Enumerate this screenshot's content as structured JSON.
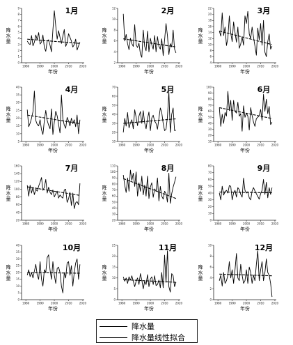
{
  "figure": {
    "y_label": "降水量",
    "x_label": "年份"
  },
  "legend": {
    "precip_label": "降水量",
    "trend_label": "降水量线性拟合"
  },
  "colors": {
    "series": "#000000",
    "trend": "#000000",
    "axes": "#222222"
  },
  "chart_data": [
    {
      "type": "line",
      "month_label": "1月",
      "x_start": 1981,
      "x_end": 2018,
      "xticks": [
        1980,
        1990,
        2000,
        2010,
        2020
      ],
      "ylim": [
        0,
        9
      ],
      "yticks": [
        0,
        1,
        2,
        3,
        4,
        5,
        6,
        7,
        8,
        9
      ],
      "values": [
        3.6,
        3.2,
        3.0,
        4.5,
        2.8,
        3.4,
        4.6,
        3.8,
        5.0,
        3.1,
        3.4,
        4.6,
        2.5,
        1.9,
        3.6,
        3.8,
        2.9,
        1.8,
        5.4,
        8.6,
        6.1,
        3.9,
        5.3,
        4.2,
        3.2,
        4.4,
        5.5,
        2.7,
        3.3,
        4.8,
        4.2,
        3.6,
        2.6,
        3.0,
        3.9,
        2.1,
        2.8,
        3.4
      ],
      "trend": [
        3.9,
        3.2
      ]
    },
    {
      "type": "line",
      "month_label": "2月",
      "x_start": 1981,
      "x_end": 2018,
      "xticks": [
        1980,
        1990,
        2000,
        2010,
        2020
      ],
      "ylim": [
        2,
        12
      ],
      "yticks": [
        2,
        4,
        6,
        8,
        10,
        12
      ],
      "values": [
        11.0,
        6.0,
        7.2,
        5.5,
        4.4,
        6.5,
        5.5,
        5.0,
        9.0,
        5.3,
        4.8,
        5.6,
        3.6,
        3.0,
        8.0,
        5.0,
        4.2,
        7.8,
        4.0,
        6.5,
        5.3,
        4.5,
        7.0,
        4.0,
        6.8,
        5.0,
        4.5,
        6.4,
        3.3,
        6.2,
        9.2,
        7.0,
        3.5,
        5.5,
        4.9,
        8.0,
        4.5,
        3.8
      ],
      "trend": [
        6.4,
        4.9
      ]
    },
    {
      "type": "line",
      "month_label": "3月",
      "x_start": 1981,
      "x_end": 2018,
      "xticks": [
        1980,
        1990,
        2000,
        2010,
        2020
      ],
      "ylim": [
        4,
        22
      ],
      "yticks": [
        4,
        6,
        8,
        10,
        12,
        14,
        16,
        18,
        20,
        22
      ],
      "values": [
        14.5,
        12.8,
        20.5,
        13.0,
        15.8,
        9.7,
        12.2,
        19.5,
        13.8,
        11.0,
        17.5,
        14.0,
        10.8,
        15.8,
        8.8,
        10.2,
        12.5,
        9.8,
        19.5,
        17.0,
        21.0,
        13.5,
        12.0,
        15.8,
        12.5,
        9.5,
        6.5,
        15.5,
        11.5,
        17.0,
        9.8,
        18.0,
        7.5,
        6.0,
        11.0,
        13.5,
        8.5,
        9.5
      ],
      "trend": [
        14.5,
        10.0
      ]
    },
    {
      "type": "line",
      "month_label": "4月",
      "x_start": 1981,
      "x_end": 2018,
      "xticks": [
        1980,
        1990,
        2000,
        2010,
        2020
      ],
      "ylim": [
        5,
        40
      ],
      "yticks": [
        5,
        10,
        15,
        20,
        25,
        30,
        35,
        40
      ],
      "values": [
        25.5,
        14.5,
        16.8,
        20.0,
        24.2,
        37.5,
        18.5,
        16.0,
        15.0,
        19.0,
        12.5,
        9.5,
        18.5,
        25.0,
        18.5,
        15.5,
        13.2,
        26.0,
        9.5,
        17.5,
        24.5,
        21.5,
        16.0,
        10.5,
        35.0,
        19.5,
        15.5,
        13.5,
        20.5,
        18.2,
        15.0,
        20.0,
        16.5,
        19.0,
        14.5,
        22.0,
        10.0,
        19.0
      ],
      "trend": [
        22.0,
        16.5
      ]
    },
    {
      "type": "line",
      "month_label": "5月",
      "x_start": 1981,
      "x_end": 2018,
      "xticks": [
        1980,
        1990,
        2000,
        2010,
        2020
      ],
      "ylim": [
        10,
        70
      ],
      "yticks": [
        10,
        20,
        30,
        40,
        50,
        60,
        70
      ],
      "values": [
        20.0,
        35.5,
        27.0,
        42.0,
        25.0,
        30.5,
        34.0,
        24.0,
        45.0,
        36.5,
        27.5,
        38.0,
        43.0,
        30.0,
        44.0,
        30.5,
        24.0,
        35.0,
        42.5,
        22.0,
        36.0,
        39.0,
        32.5,
        30.0,
        23.5,
        35.5,
        47.0,
        42.0,
        30.0,
        22.0,
        23.5,
        37.0,
        65.0,
        20.0,
        40.0,
        47.0,
        22.0,
        22.5
      ],
      "trend": [
        30.0,
        35.0
      ]
    },
    {
      "type": "line",
      "month_label": "6月",
      "x_start": 1981,
      "x_end": 2018,
      "xticks": [
        1980,
        1990,
        2000,
        2010,
        2020
      ],
      "ylim": [
        10,
        100
      ],
      "yticks": [
        10,
        20,
        30,
        40,
        50,
        60,
        70,
        80,
        90,
        100
      ],
      "values": [
        66.0,
        35.0,
        55.0,
        40.0,
        58.0,
        52.0,
        93.0,
        61.0,
        78.0,
        45.0,
        78.0,
        60.0,
        57.0,
        75.0,
        52.0,
        56.0,
        27.0,
        69.0,
        50.0,
        57.0,
        52.0,
        29.0,
        66.0,
        53.0,
        42.0,
        35.0,
        48.0,
        50.0,
        53.0,
        63.0,
        45.0,
        88.0,
        60.0,
        80.0,
        56.0,
        68.0,
        38.0,
        42.0
      ],
      "trend": [
        66.0,
        48.0
      ]
    },
    {
      "type": "line",
      "month_label": "7月",
      "x_start": 1981,
      "x_end": 2018,
      "xticks": [
        1980,
        1990,
        2000,
        2010,
        2020
      ],
      "ylim": [
        20,
        160
      ],
      "yticks": [
        20,
        40,
        60,
        80,
        100,
        120,
        140,
        160
      ],
      "values": [
        110,
        82,
        110,
        90,
        105,
        86,
        100,
        95,
        108,
        118,
        130,
        97,
        105,
        125,
        90,
        105,
        92,
        86,
        98,
        80,
        88,
        95,
        77,
        85,
        80,
        77,
        98,
        100,
        66,
        75,
        92,
        58,
        90,
        50,
        65,
        68,
        60,
        115
      ],
      "trend": [
        106,
        84
      ]
    },
    {
      "type": "line",
      "month_label": "8月",
      "x_start": 1981,
      "x_end": 2018,
      "xticks": [
        1980,
        1990,
        2000,
        2010,
        2020
      ],
      "ylim": [
        20,
        110
      ],
      "yticks": [
        20,
        30,
        40,
        50,
        60,
        70,
        80,
        90,
        100,
        110
      ],
      "values": [
        95,
        78,
        66,
        90,
        68,
        103,
        86,
        98,
        76,
        100,
        60,
        82,
        68,
        93,
        62,
        78,
        60,
        93,
        56,
        75,
        82,
        58,
        72,
        68,
        90,
        52,
        76,
        60,
        55,
        68,
        64,
        50,
        98,
        48,
        64,
        75,
        83,
        92
      ],
      "trend": [
        89,
        56
      ]
    },
    {
      "type": "line",
      "month_label": "9月",
      "x_start": 1981,
      "x_end": 2018,
      "xticks": [
        1980,
        1990,
        2000,
        2010,
        2020
      ],
      "ylim": [
        0,
        80
      ],
      "yticks": [
        0,
        10,
        20,
        30,
        40,
        50,
        60,
        70,
        80
      ],
      "values": [
        40,
        30,
        50,
        37,
        42,
        44,
        40,
        51,
        50,
        30,
        40,
        44,
        34,
        48,
        45,
        38,
        34,
        62,
        44,
        40,
        42,
        33,
        30,
        43,
        48,
        43,
        39,
        35,
        31,
        39,
        44,
        60,
        38,
        56,
        33,
        48,
        38,
        48
      ],
      "trend": [
        41.5,
        40.5
      ]
    },
    {
      "type": "line",
      "month_label": "10月",
      "x_start": 1981,
      "x_end": 2018,
      "xticks": [
        1980,
        1990,
        2000,
        2010,
        2020
      ],
      "ylim": [
        0,
        40
      ],
      "yticks": [
        0,
        5,
        10,
        15,
        20,
        25,
        30,
        35,
        40
      ],
      "values": [
        18,
        22,
        17,
        20,
        16,
        21,
        26,
        18,
        15,
        28,
        15,
        10,
        22,
        20,
        31,
        33,
        22,
        15,
        28,
        18,
        12,
        23,
        24,
        20,
        10,
        5,
        20,
        16,
        27,
        28,
        18,
        25,
        10,
        20,
        27,
        30,
        15,
        26
      ],
      "trend": [
        20.0,
        19.5
      ]
    },
    {
      "type": "line",
      "month_label": "11月",
      "x_start": 1981,
      "x_end": 2018,
      "xticks": [
        1980,
        1990,
        2000,
        2010,
        2020
      ],
      "ylim": [
        0,
        25
      ],
      "yticks": [
        0,
        5,
        10,
        15,
        20,
        25
      ],
      "values": [
        10.5,
        8.5,
        10.0,
        7.5,
        10.5,
        9.0,
        11.0,
        8.5,
        6.0,
        8.5,
        10.0,
        7.0,
        12.0,
        9.0,
        5.0,
        8.5,
        7.0,
        11.5,
        6.0,
        9.5,
        10.5,
        7.0,
        11.0,
        6.5,
        7.0,
        9.0,
        5.5,
        12.5,
        5.5,
        20.5,
        8.0,
        22.5,
        6.0,
        3.5,
        12.0,
        11.0,
        6.0,
        8.0
      ],
      "trend": [
        9.2,
        8.0
      ]
    },
    {
      "type": "line",
      "month_label": "12月",
      "x_start": 1981,
      "x_end": 2018,
      "xticks": [
        1980,
        1990,
        2000,
        2010,
        2020
      ],
      "ylim": [
        0,
        10
      ],
      "yticks": [
        0,
        2,
        4,
        6,
        8,
        10
      ],
      "values": [
        3.5,
        4.5,
        2.5,
        5.0,
        3.0,
        3.5,
        4.5,
        7.0,
        4.0,
        5.5,
        3.0,
        5.5,
        8.5,
        4.0,
        3.5,
        6.5,
        4.5,
        3.0,
        3.5,
        5.5,
        3.0,
        6.0,
        5.0,
        3.0,
        4.5,
        3.5,
        6.5,
        9.0,
        3.5,
        5.5,
        7.0,
        3.5,
        5.0,
        7.5,
        5.0,
        4.5,
        3.0,
        0.5
      ],
      "trend": [
        4.7,
        4.4
      ]
    }
  ]
}
